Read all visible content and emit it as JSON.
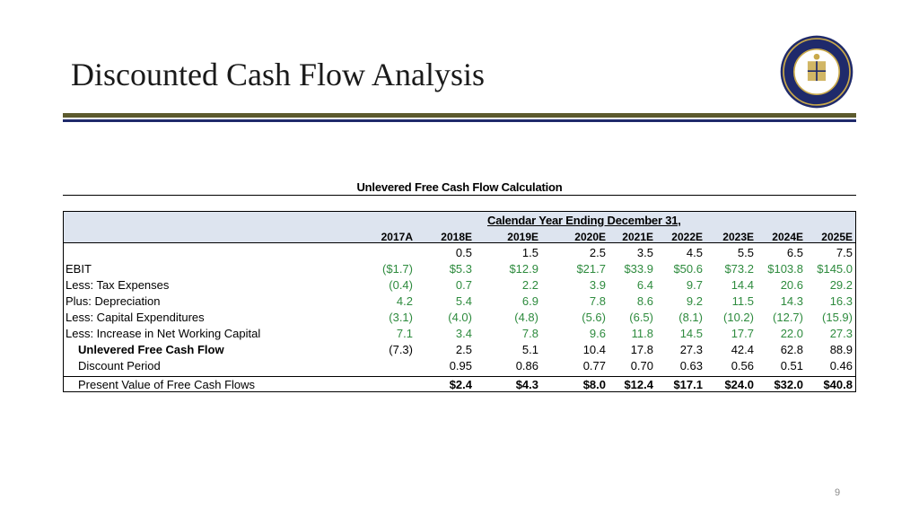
{
  "slide": {
    "title": "Discounted Cash Flow Analysis",
    "page_number": "9",
    "colors": {
      "olive_rule": "#5c5a2e",
      "navy_rule": "#1f2a6b",
      "header_fill": "#dde4ef",
      "green_values": "#2e8b3e"
    }
  },
  "table": {
    "title": "Unlevered Free Cash Flow Calculation",
    "calendar_header": "Calendar Year Ending December 31,",
    "years": [
      "2017A",
      "2018E",
      "2019E",
      "2020E",
      "2021E",
      "2022E",
      "2023E",
      "2024E",
      "2025E"
    ],
    "rows": [
      {
        "label": "",
        "values": [
          "",
          "0.5",
          "1.5",
          "2.5",
          "3.5",
          "4.5",
          "5.5",
          "6.5",
          "7.5"
        ]
      },
      {
        "label": "EBIT",
        "values": [
          "($1.7)",
          "$5.3",
          "$12.9",
          "$21.7",
          "$33.9",
          "$50.6",
          "$73.2",
          "$103.8",
          "$145.0"
        ]
      },
      {
        "label": "Less: Tax Expenses",
        "values": [
          "(0.4)",
          "0.7",
          "2.2",
          "3.9",
          "6.4",
          "9.7",
          "14.4",
          "20.6",
          "29.2"
        ]
      },
      {
        "label": "Plus: Depreciation",
        "values": [
          "4.2",
          "5.4",
          "6.9",
          "7.8",
          "8.6",
          "9.2",
          "11.5",
          "14.3",
          "16.3"
        ]
      },
      {
        "label": "Less: Capital Expenditures",
        "values": [
          "(3.1)",
          "(4.0)",
          "(4.8)",
          "(5.6)",
          "(6.5)",
          "(8.1)",
          "(10.2)",
          "(12.7)",
          "(15.9)"
        ]
      },
      {
        "label": "Less: Increase in Net Working Capital",
        "values": [
          "7.1",
          "3.4",
          "7.8",
          "9.6",
          "11.8",
          "14.5",
          "17.7",
          "22.0",
          "27.3"
        ]
      },
      {
        "label": "Unlevered Free Cash Flow",
        "values": [
          "(7.3)",
          "2.5",
          "5.1",
          "10.4",
          "17.8",
          "27.3",
          "42.4",
          "62.8",
          "88.9"
        ]
      },
      {
        "label": "Discount Period",
        "values": [
          "",
          "0.95",
          "0.86",
          "0.77",
          "0.70",
          "0.63",
          "0.56",
          "0.51",
          "0.46"
        ]
      },
      {
        "label": "Present Value of Free Cash Flows",
        "values": [
          "",
          "$2.4",
          "$4.3",
          "$8.0",
          "$12.4",
          "$17.1",
          "$24.0",
          "$32.0",
          "$40.8"
        ]
      }
    ]
  }
}
